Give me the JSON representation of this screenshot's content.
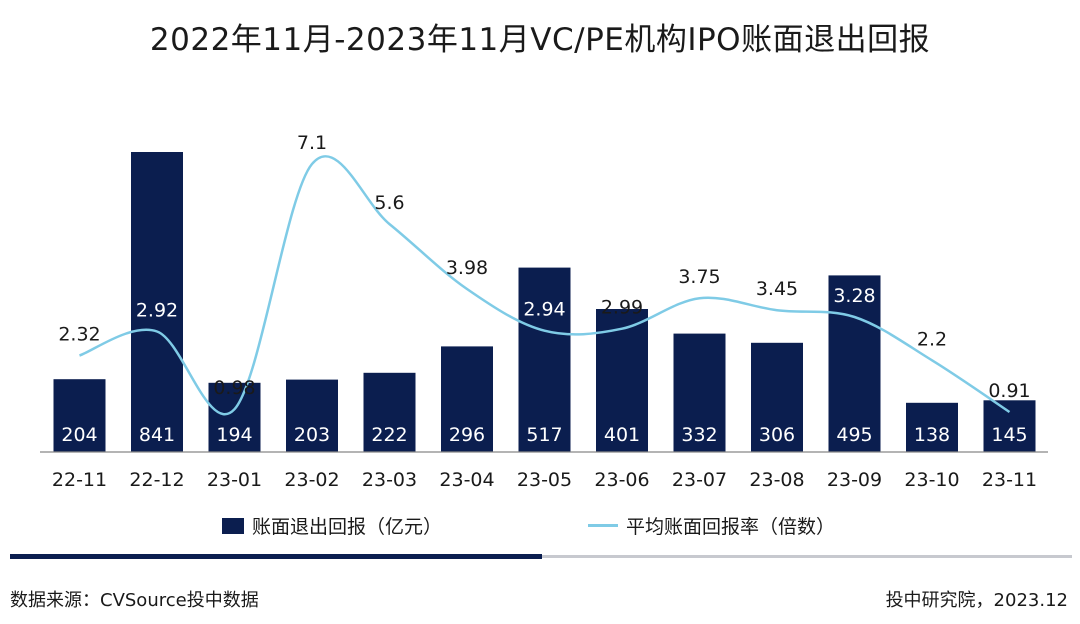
{
  "title": "2022年11月-2023年11月VC/PE机构IPO账面退出回报",
  "legend": {
    "bar_label": "账面退出回报（亿元）",
    "line_label": "平均账面回报率（倍数）"
  },
  "footer": {
    "source": "数据来源：CVSource投中数据",
    "credit": "投中研究院，2023.12"
  },
  "colors": {
    "bar": "#0b1e4f",
    "line": "#7fcbe6",
    "bar_text": "#ffffff",
    "text": "#1a1a1a"
  },
  "chart_data": {
    "type": "bar",
    "categories": [
      "22-11",
      "22-12",
      "23-01",
      "23-02",
      "23-03",
      "23-04",
      "23-05",
      "23-06",
      "23-07",
      "23-08",
      "23-09",
      "23-10",
      "23-11"
    ],
    "series": [
      {
        "name": "账面退出回报（亿元）",
        "type": "bar",
        "axis": "left",
        "values": [
          204,
          841,
          194,
          203,
          222,
          296,
          517,
          401,
          332,
          306,
          495,
          138,
          145
        ],
        "labels": [
          "204",
          "841",
          "194",
          "203",
          "222",
          "296",
          "517",
          "401",
          "332",
          "306",
          "495",
          "138",
          "145"
        ]
      },
      {
        "name": "平均账面回报率（倍数）",
        "type": "line",
        "axis": "right",
        "values": [
          2.32,
          2.92,
          0.98,
          7.1,
          5.6,
          3.98,
          2.94,
          2.99,
          3.75,
          3.45,
          3.28,
          2.2,
          0.91
        ],
        "labels": [
          "2.32",
          "2.92",
          "0.98",
          "7.1",
          "5.6",
          "3.98",
          "2.94",
          "2.99",
          "3.75",
          "3.45",
          "3.28",
          "2.2",
          "0.91"
        ],
        "smooth": true
      }
    ],
    "left_axis_range": [
      0,
      900
    ],
    "right_axis_range": [
      0,
      8
    ],
    "axes_visible": false,
    "grid": false,
    "legend_position": "bottom"
  }
}
